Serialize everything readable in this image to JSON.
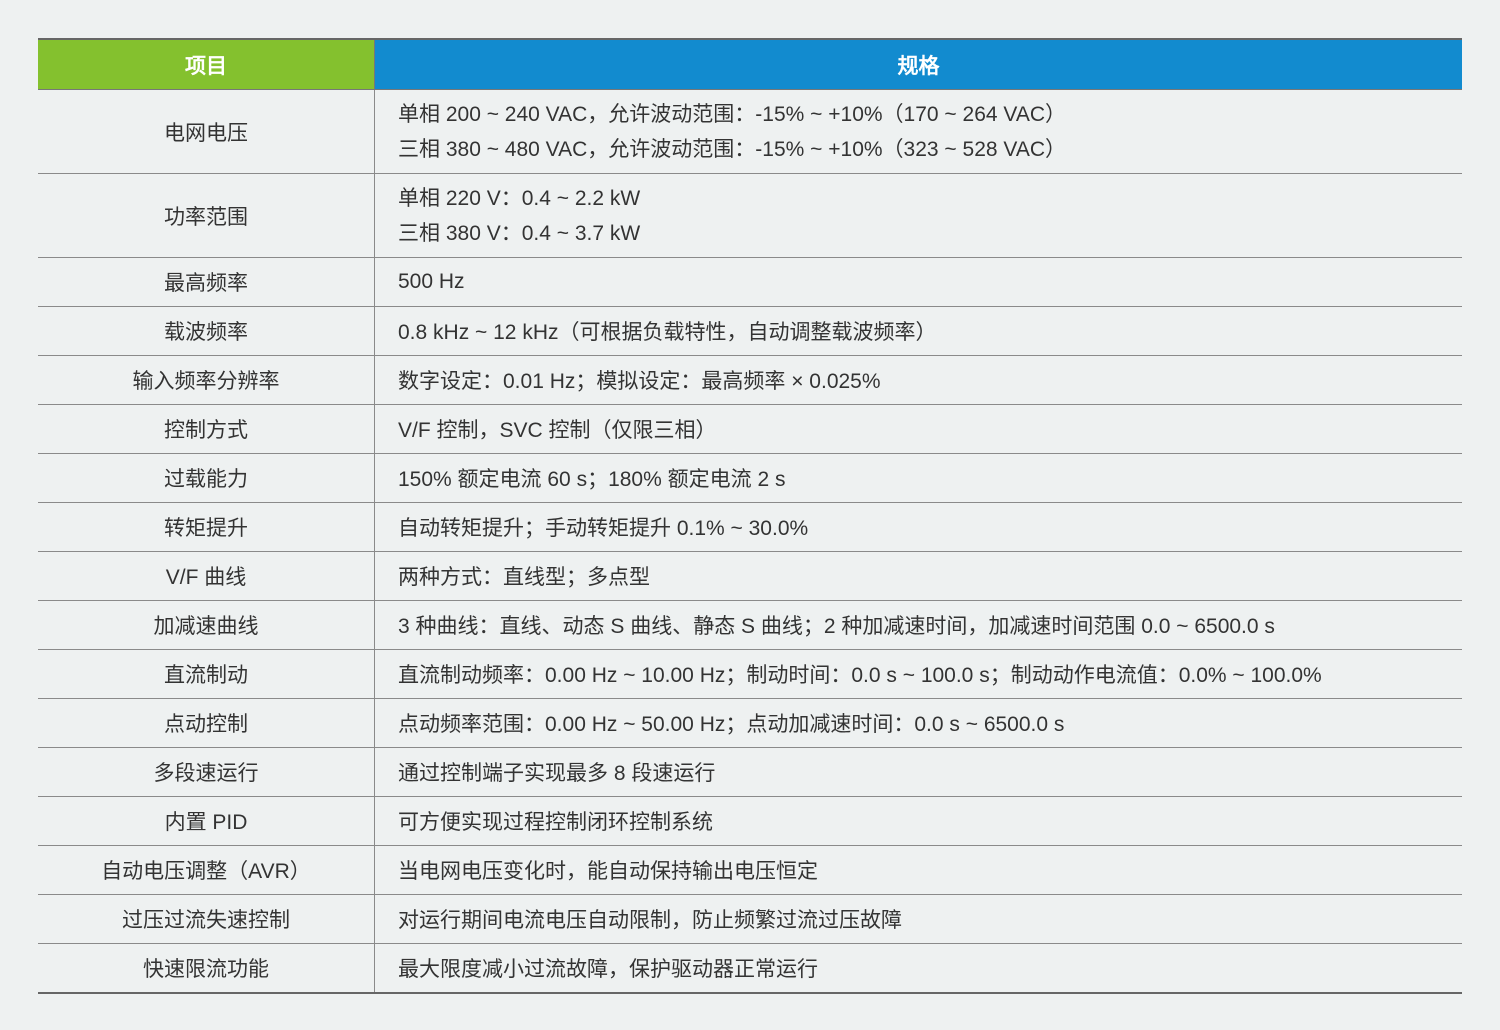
{
  "header": {
    "item": "项目",
    "spec": "规格"
  },
  "rows": [
    {
      "item": "电网电压",
      "spec": [
        "单相 200 ~ 240 VAC，允许波动范围：-15% ~ +10%（170 ~ 264 VAC）",
        "三相 380 ~ 480 VAC，允许波动范围：-15% ~ +10%（323 ~ 528 VAC）"
      ]
    },
    {
      "item": "功率范围",
      "spec": [
        "单相 220 V：0.4 ~ 2.2 kW",
        "三相 380 V：0.4 ~ 3.7 kW"
      ]
    },
    {
      "item": "最高频率",
      "spec": [
        "500 Hz"
      ]
    },
    {
      "item": "载波频率",
      "spec": [
        "0.8 kHz ~ 12 kHz（可根据负载特性，自动调整载波频率）"
      ]
    },
    {
      "item": "输入频率分辨率",
      "spec": [
        "数字设定：0.01 Hz；模拟设定：最高频率 × 0.025%"
      ]
    },
    {
      "item": "控制方式",
      "spec": [
        "V/F 控制，SVC 控制（仅限三相）"
      ]
    },
    {
      "item": "过载能力",
      "spec": [
        "150% 额定电流 60 s；180% 额定电流 2 s"
      ]
    },
    {
      "item": "转矩提升",
      "spec": [
        "自动转矩提升；手动转矩提升 0.1% ~ 30.0%"
      ]
    },
    {
      "item": "V/F 曲线",
      "spec": [
        "两种方式：直线型；多点型"
      ]
    },
    {
      "item": "加减速曲线",
      "spec": [
        "3 种曲线：直线、动态 S 曲线、静态 S 曲线；2 种加减速时间，加减速时间范围 0.0 ~ 6500.0 s"
      ]
    },
    {
      "item": "直流制动",
      "spec": [
        "直流制动频率：0.00 Hz ~ 10.00 Hz；制动时间：0.0 s ~ 100.0 s；制动动作电流值：0.0% ~ 100.0%"
      ]
    },
    {
      "item": "点动控制",
      "spec": [
        "点动频率范围：0.00 Hz ~ 50.00 Hz；点动加减速时间：0.0 s ~ 6500.0 s"
      ]
    },
    {
      "item": "多段速运行",
      "spec": [
        "通过控制端子实现最多 8 段速运行"
      ]
    },
    {
      "item": "内置 PID",
      "spec": [
        "可方便实现过程控制闭环控制系统"
      ]
    },
    {
      "item": "自动电压调整（AVR）",
      "spec": [
        "当电网电压变化时，能自动保持输出电压恒定"
      ]
    },
    {
      "item": "过压过流失速控制",
      "spec": [
        "对运行期间电流电压自动限制，防止频繁过流过压故障"
      ]
    },
    {
      "item": "快速限流功能",
      "spec": [
        "最大限度减小过流故障，保护驱动器正常运行"
      ]
    }
  ],
  "colors": {
    "item_header": "#84c12e",
    "spec_header": "#128bcf",
    "background": "#eef1f1"
  }
}
